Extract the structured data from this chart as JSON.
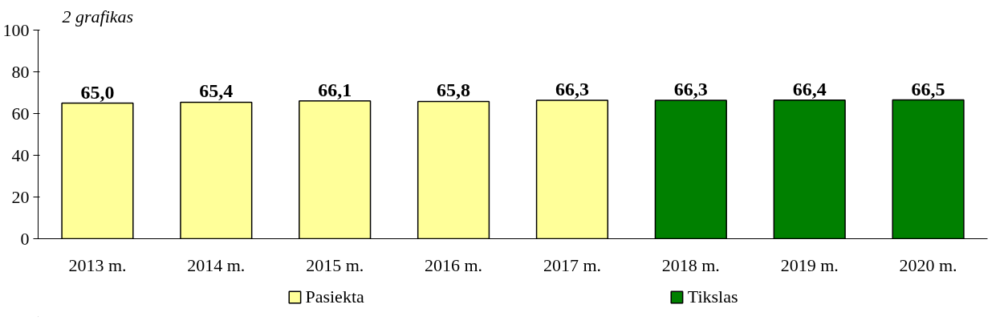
{
  "chart_data": {
    "type": "bar",
    "title": "2 grafikas",
    "categories": [
      "2013 m.",
      "2014 m.",
      "2015 m.",
      "2016 m.",
      "2017 m.",
      "2018 m.",
      "2019 m.",
      "2020 m."
    ],
    "series": [
      {
        "name": "Pasiekta",
        "color": "#ffff99",
        "values": [
          65.0,
          65.4,
          66.1,
          65.8,
          66.3,
          null,
          null,
          null
        ],
        "value_labels": [
          "65,0",
          "65,4",
          "66,1",
          "65,8",
          "66,3",
          null,
          null,
          null
        ]
      },
      {
        "name": "Tikslas",
        "color": "#008000",
        "values": [
          null,
          null,
          null,
          null,
          null,
          66.3,
          66.4,
          66.5
        ],
        "value_labels": [
          null,
          null,
          null,
          null,
          null,
          "66,3",
          "66,4",
          "66,5"
        ]
      }
    ],
    "ylim": [
      0,
      100
    ],
    "yticks": [
      0,
      20,
      40,
      60,
      80,
      100
    ],
    "grid": false,
    "legend": "bottom"
  }
}
